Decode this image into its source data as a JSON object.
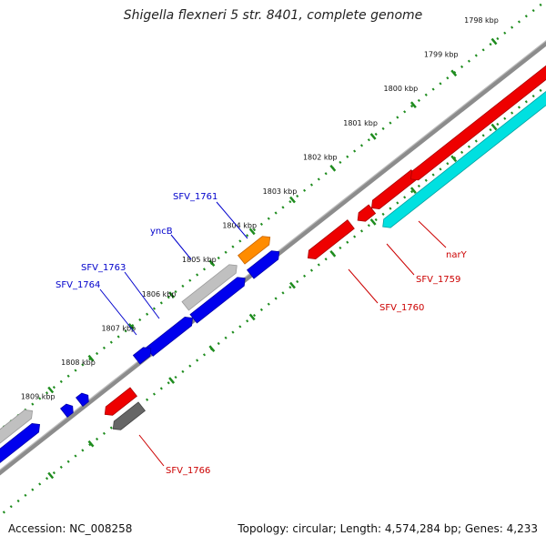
{
  "title": "Shigella flexneri 5 str. 8401, complete genome",
  "footer": {
    "accession": "Accession: NC_008258",
    "summary": "Topology: circular; Length: 4,574,284 bp; Genes: 4,233"
  },
  "colors": {
    "backbone": "#8c8c8c",
    "tick_dots": "#1e8c1e",
    "forward_gene": "#0000ee",
    "reverse_gene": "#ee0000",
    "cyan_feature": "#00e0e0",
    "orange_feature": "#ff8c00",
    "gray_feature": "#c0c0c0",
    "dark_gray_feature": "#666666",
    "label_blue": "#0000cc",
    "label_red": "#cc0000",
    "tick_label": "#111111"
  },
  "ticks": [
    {
      "label": "1798 kbp"
    },
    {
      "label": "1799 kbp"
    },
    {
      "label": "1800 kbp"
    },
    {
      "label": "1801 kbp"
    },
    {
      "label": "1802 kbp"
    },
    {
      "label": "1803 kbp"
    },
    {
      "label": "1804 kbp"
    },
    {
      "label": "1805 kbp"
    },
    {
      "label": "1806 kbp"
    },
    {
      "label": "1807 kbp"
    },
    {
      "label": "1808 kbp"
    },
    {
      "label": "1809 kbp"
    }
  ],
  "gene_labels": {
    "sfv_1761": "SFV_1761",
    "yncb": "yncB",
    "sfv_1763": "SFV_1763",
    "sfv_1764": "SFV_1764",
    "nary": "narY",
    "sfv_1759": "SFV_1759",
    "sfv_1760": "SFV_1760",
    "sfv_1766": "SFV_1766"
  }
}
